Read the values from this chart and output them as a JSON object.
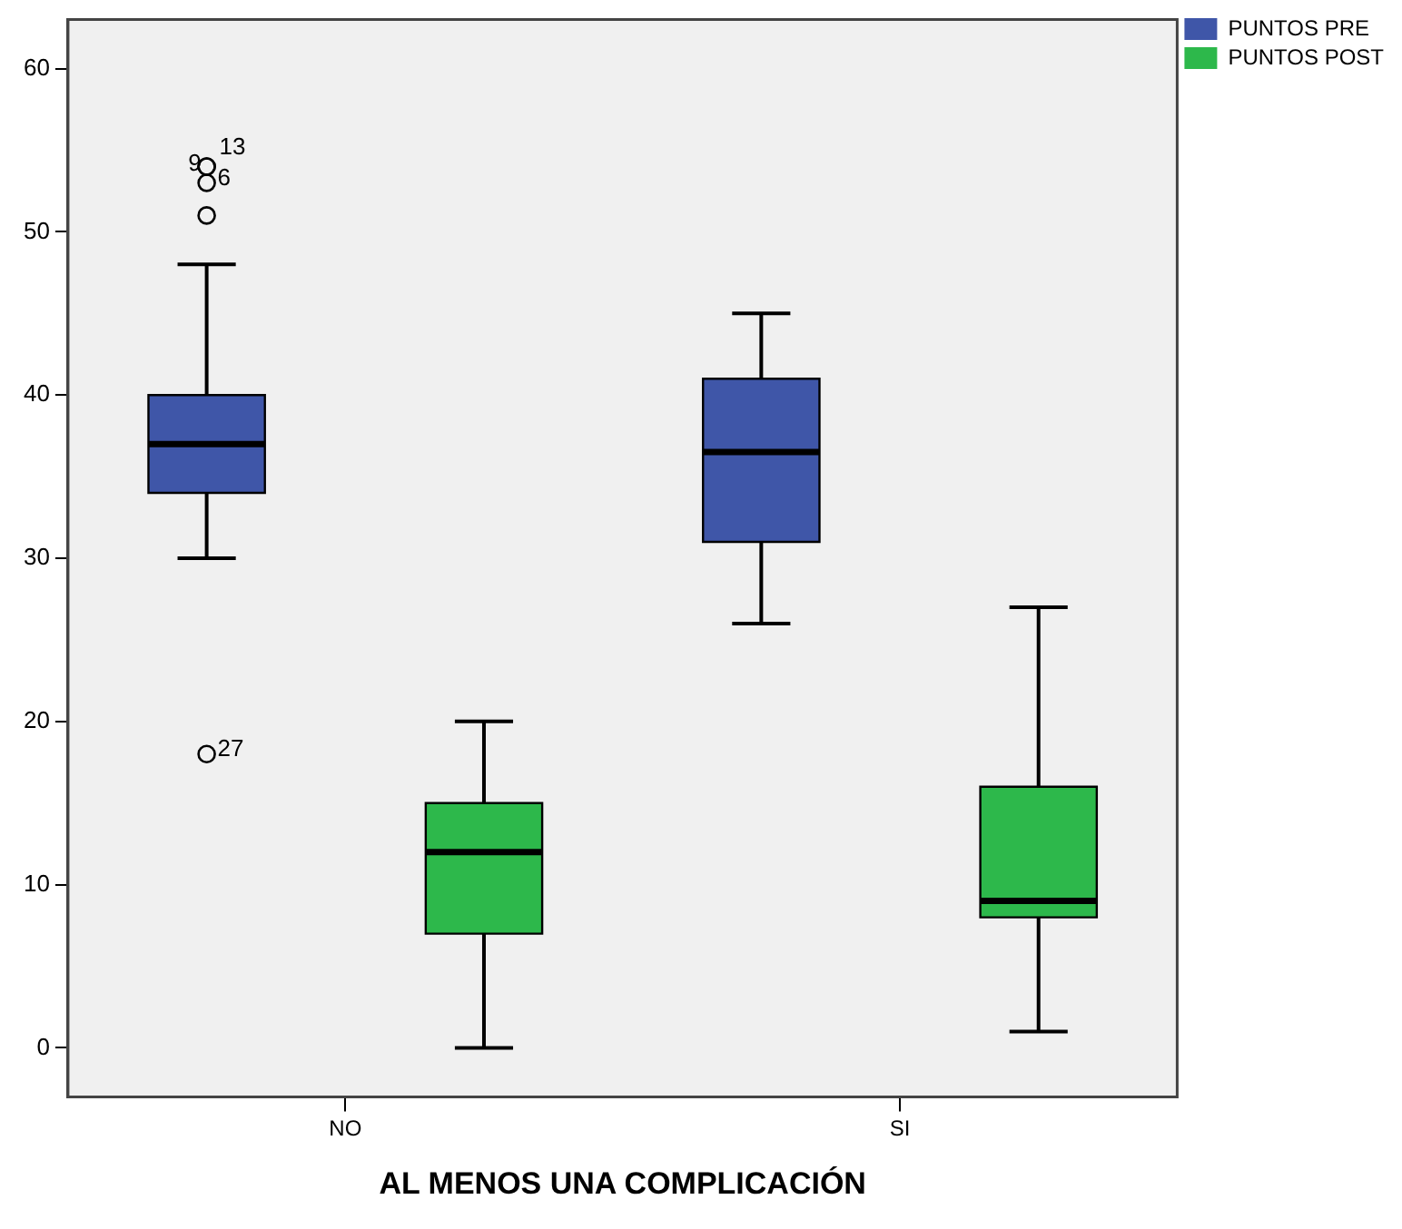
{
  "chart_data": {
    "type": "box",
    "xlabel": "AL MENOS UNA COMPLICACIÓN",
    "categories": [
      "NO",
      "SI"
    ],
    "series": [
      {
        "name": "PUNTOS PRE",
        "color": "#3f56a8",
        "boxes": [
          {
            "low": 30,
            "q1": 34,
            "median": 37,
            "q3": 40,
            "high": 48,
            "outliers": [
              54,
              54,
              53,
              18,
              51
            ]
          },
          {
            "low": 26,
            "q1": 31,
            "median": 36.5,
            "q3": 41,
            "high": 45
          }
        ]
      },
      {
        "name": "PUNTOS POST",
        "color": "#2db84b",
        "boxes": [
          {
            "low": 0,
            "q1": 7,
            "median": 12,
            "q3": 15,
            "high": 20
          },
          {
            "low": 1,
            "q1": 8,
            "median": 9,
            "q3": 16,
            "high": 27
          }
        ]
      }
    ],
    "ylim": [
      -3,
      63
    ],
    "yticks": [
      0,
      10,
      20,
      30,
      40,
      50,
      60
    ],
    "annotations": [
      "9",
      "13",
      "6",
      "27"
    ],
    "legend": "top right"
  }
}
